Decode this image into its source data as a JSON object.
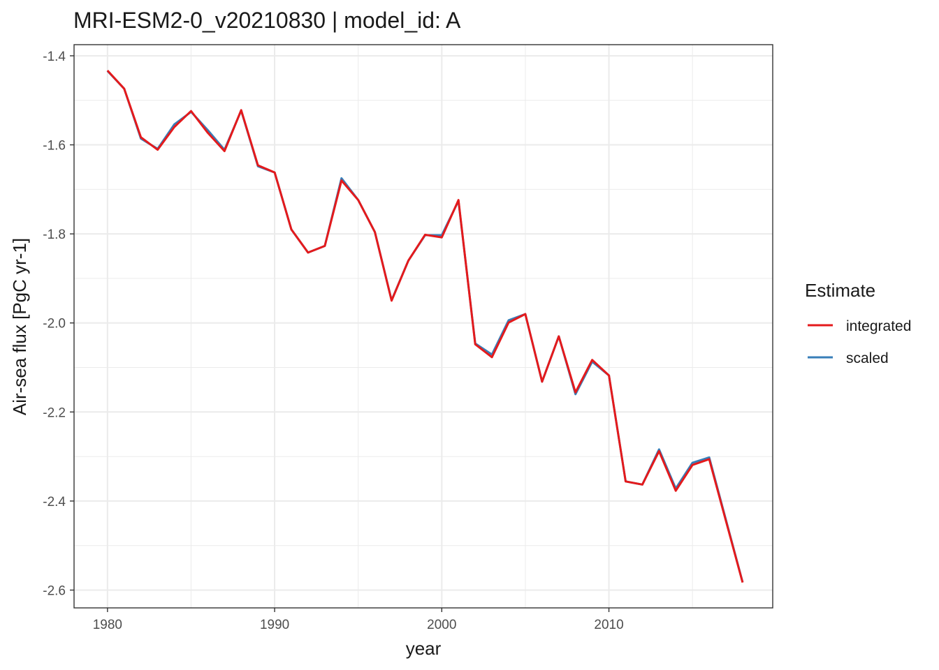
{
  "chart_data": {
    "type": "line",
    "title": "MRI-ESM2-0_v20210830 | model_id: A",
    "xlabel": "year",
    "ylabel": "Air-sea flux [PgC yr-1]",
    "xlim": [
      1978,
      2019.8
    ],
    "ylim": [
      -2.64,
      -1.375
    ],
    "x_ticks": [
      1980,
      1990,
      2000,
      2010
    ],
    "y_ticks": [
      -1.4,
      -1.6,
      -1.8,
      -2.0,
      -2.2,
      -2.4,
      -2.6
    ],
    "x_tick_labels": [
      "1980",
      "1990",
      "2000",
      "2010"
    ],
    "y_tick_labels": [
      "-1.4",
      "-1.6",
      "-1.8",
      "-2.0",
      "-2.2",
      "-2.4",
      "-2.6"
    ],
    "grid": true,
    "legend": {
      "title": "Estimate",
      "position": "right"
    },
    "series": [
      {
        "name": "scaled",
        "color": "#377EB8",
        "x": [
          1980,
          1981,
          1982,
          1983,
          1984,
          1985,
          1986,
          1987,
          1988,
          1989,
          1990,
          1991,
          1992,
          1993,
          1994,
          1995,
          1996,
          1997,
          1998,
          1999,
          2000,
          2001,
          2002,
          2003,
          2004,
          2005,
          2006,
          2007,
          2008,
          2009,
          2010,
          2011,
          2012,
          2013,
          2014,
          2015,
          2016,
          2018
        ],
        "y": [
          -1.434,
          -1.474,
          -1.586,
          -1.609,
          -1.554,
          -1.526,
          -1.567,
          -1.611,
          -1.523,
          -1.648,
          -1.662,
          -1.79,
          -1.842,
          -1.827,
          -1.675,
          -1.724,
          -1.796,
          -1.949,
          -1.86,
          -1.803,
          -1.803,
          -1.726,
          -2.046,
          -2.071,
          -1.994,
          -1.98,
          -2.132,
          -2.03,
          -2.16,
          -2.087,
          -2.118,
          -2.356,
          -2.363,
          -2.284,
          -2.372,
          -2.314,
          -2.302,
          -2.582
        ]
      },
      {
        "name": "integrated",
        "color": "#E41A1C",
        "x": [
          1980,
          1981,
          1982,
          1983,
          1984,
          1985,
          1986,
          1987,
          1988,
          1989,
          1990,
          1991,
          1992,
          1993,
          1994,
          1995,
          1996,
          1997,
          1998,
          1999,
          2000,
          2001,
          2002,
          2003,
          2004,
          2005,
          2006,
          2007,
          2008,
          2009,
          2010,
          2011,
          2012,
          2013,
          2014,
          2015,
          2016,
          2018
        ],
        "y": [
          -1.433,
          -1.474,
          -1.583,
          -1.611,
          -1.56,
          -1.524,
          -1.573,
          -1.614,
          -1.522,
          -1.646,
          -1.662,
          -1.79,
          -1.842,
          -1.827,
          -1.68,
          -1.724,
          -1.796,
          -1.95,
          -1.86,
          -1.802,
          -1.808,
          -1.724,
          -2.048,
          -2.077,
          -1.999,
          -1.98,
          -2.132,
          -2.03,
          -2.156,
          -2.083,
          -2.118,
          -2.356,
          -2.363,
          -2.288,
          -2.377,
          -2.319,
          -2.306,
          -2.583
        ]
      }
    ]
  }
}
